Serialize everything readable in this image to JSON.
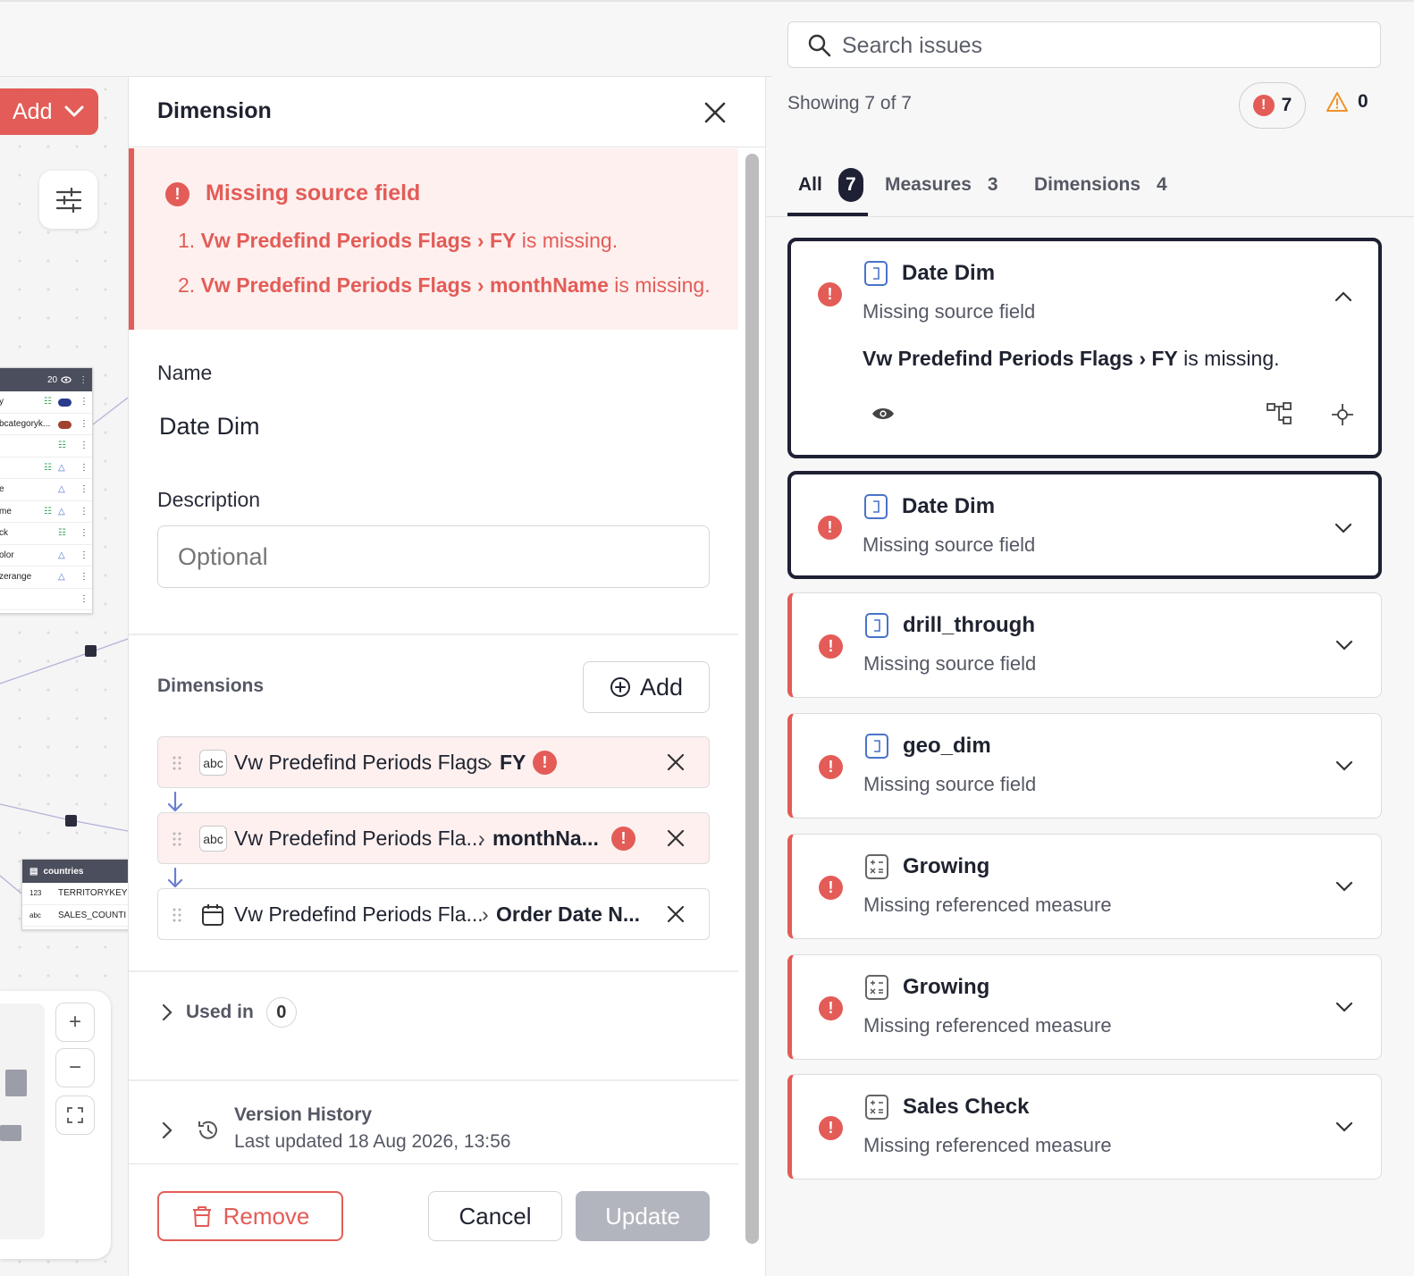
{
  "canvas": {
    "add_label": "Add",
    "table1": {
      "header_count": "20",
      "rows": [
        "y",
        "bcategoryk...",
        "",
        "",
        "e",
        "me",
        "ck",
        "olor",
        "zerange",
        ""
      ]
    },
    "table2": {
      "title": "countries",
      "rows": [
        {
          "type": "123",
          "name": "TERRITORYKEY"
        },
        {
          "type": "abc",
          "name": "SALES_COUNTI"
        }
      ]
    },
    "zoom": {
      "in": "+",
      "out": "−"
    }
  },
  "panel": {
    "title": "Dimension",
    "error": {
      "title": "Missing source field",
      "items": [
        {
          "num": "1.",
          "source": "Vw Predefind Periods Flags",
          "sep": "›",
          "field": "FY",
          "suffix": "is missing."
        },
        {
          "num": "2.",
          "source": "Vw Predefind Periods Flags",
          "sep": "›",
          "field": "monthName",
          "suffix": "is missing."
        }
      ]
    },
    "name_label": "Name",
    "name_value": "Date Dim",
    "description_label": "Description",
    "description_placeholder": "Optional",
    "dimensions_label": "Dimensions",
    "dimensions_add": "Add",
    "dimensions": [
      {
        "type": "abc",
        "source": "Vw Predefind Periods Flags",
        "sep": "›",
        "field": "FY",
        "error": true
      },
      {
        "type": "abc",
        "source": "Vw Predefind Periods Fla...",
        "sep": "›",
        "field": "monthNa...",
        "error": true
      },
      {
        "type": "calendar",
        "source": "Vw Predefind Periods Fla...",
        "sep": "›",
        "field": "Order Date N...",
        "error": false
      }
    ],
    "used_in_label": "Used in",
    "used_in_count": "0",
    "version_history_title": "Version History",
    "version_history_sub": "Last updated 18 Aug 2026, 13:56",
    "remove_label": "Remove",
    "cancel_label": "Cancel",
    "update_label": "Update"
  },
  "issues": {
    "search_placeholder": "Search issues",
    "showing": "Showing 7 of 7",
    "error_count": "7",
    "warning_count": "0",
    "tabs": [
      {
        "label": "All",
        "count": "7"
      },
      {
        "label": "Measures",
        "count": "3"
      },
      {
        "label": "Dimensions",
        "count": "4"
      }
    ],
    "cards": [
      {
        "title": "Date Dim",
        "subtitle": "Missing source field",
        "icon": "dimension-icon",
        "expanded": true,
        "detail": {
          "source": "Vw Predefind Periods Flags",
          "sep": "›",
          "field": "FY",
          "suffix": "is missing."
        }
      },
      {
        "title": "Date Dim",
        "subtitle": "Missing source field",
        "icon": "dimension-icon"
      },
      {
        "title": "drill_through",
        "subtitle": "Missing source field",
        "icon": "dimension-icon"
      },
      {
        "title": "geo_dim",
        "subtitle": "Missing source field",
        "icon": "dimension-icon"
      },
      {
        "title": "Growing",
        "subtitle": "Missing referenced measure",
        "icon": "calculator-icon"
      },
      {
        "title": "Growing",
        "subtitle": "Missing referenced measure",
        "icon": "calculator-icon"
      },
      {
        "title": "Sales Check",
        "subtitle": "Missing referenced measure",
        "icon": "calculator-icon"
      }
    ]
  },
  "colors": {
    "error": "#e35c57",
    "error_bg": "#fdf0ef",
    "dark": "#1e2034",
    "muted": "#555864",
    "disabled": "#b2b4be",
    "warning": "#f0932b",
    "link_blue": "#4a73c9"
  }
}
